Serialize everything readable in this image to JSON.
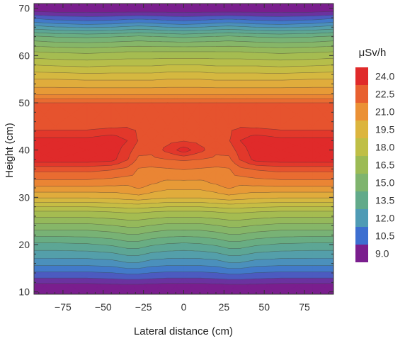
{
  "chart_data": {
    "type": "heatmap",
    "subtype": "filled-contour",
    "xlabel": "Lateral distance (cm)",
    "ylabel": "Height (cm)",
    "xlim": [
      -93,
      93
    ],
    "ylim": [
      9.5,
      71
    ],
    "x_ticks": [
      {
        "value": -75,
        "label": "−75"
      },
      {
        "value": -50,
        "label": "−50"
      },
      {
        "value": -25,
        "label": "−25"
      },
      {
        "value": 0,
        "label": "0"
      },
      {
        "value": 25,
        "label": "25"
      },
      {
        "value": 50,
        "label": "50"
      },
      {
        "value": 75,
        "label": "75"
      }
    ],
    "y_ticks": [
      {
        "value": 10,
        "label": "10"
      },
      {
        "value": 20,
        "label": "20"
      },
      {
        "value": 30,
        "label": "30"
      },
      {
        "value": 40,
        "label": "40"
      },
      {
        "value": 50,
        "label": "50"
      },
      {
        "value": 60,
        "label": "60"
      },
      {
        "value": 70,
        "label": "70"
      }
    ],
    "legend": {
      "title": "μSv/h",
      "placement": "right",
      "levels": [
        {
          "label": "24.0",
          "color": "#e02a2a"
        },
        {
          "label": "22.5",
          "color": "#e8602f"
        },
        {
          "label": "21.0",
          "color": "#eb9135"
        },
        {
          "label": "19.5",
          "color": "#dcb53e"
        },
        {
          "label": "18.0",
          "color": "#bfbf46"
        },
        {
          "label": "16.5",
          "color": "#9cbb55"
        },
        {
          "label": "15.0",
          "color": "#7fb46e"
        },
        {
          "label": "13.5",
          "color": "#62aa8a"
        },
        {
          "label": "12.0",
          "color": "#4f9bb5"
        },
        {
          "label": "10.5",
          "color": "#3d6fd0"
        },
        {
          "label": "9.0",
          "color": "#7a1e8e"
        }
      ]
    },
    "x": [
      -93,
      -80,
      -60,
      -45,
      -35,
      -28,
      -20,
      -10,
      0,
      10,
      20,
      28,
      35,
      45,
      60,
      80,
      93
    ],
    "y": [
      9.5,
      13,
      16,
      20,
      24,
      27,
      30,
      33,
      36,
      38,
      40,
      42,
      45,
      50,
      52,
      55,
      58,
      61,
      64,
      67,
      69.5,
      71
    ],
    "z": [
      [
        7.5,
        7.5,
        7.5,
        7.6,
        7.5,
        7.5,
        7.5,
        7.5,
        7.5,
        7.5,
        7.5,
        7.5,
        7.5,
        7.6,
        7.5,
        7.5,
        7.5
      ],
      [
        9.8,
        9.8,
        9.8,
        9.9,
        10.0,
        10.0,
        9.9,
        9.8,
        9.8,
        9.8,
        9.9,
        10.0,
        10.0,
        9.9,
        9.8,
        9.8,
        9.8
      ],
      [
        11.5,
        11.5,
        11.5,
        11.6,
        11.9,
        11.9,
        11.6,
        11.5,
        11.5,
        11.5,
        11.6,
        11.9,
        11.9,
        11.6,
        11.5,
        11.5,
        11.5
      ],
      [
        13.3,
        13.3,
        13.4,
        13.6,
        13.9,
        13.9,
        13.6,
        13.4,
        13.3,
        13.4,
        13.6,
        13.9,
        13.9,
        13.6,
        13.4,
        13.3,
        13.3
      ],
      [
        15.5,
        15.5,
        15.5,
        15.7,
        15.9,
        15.9,
        15.7,
        15.5,
        15.5,
        15.5,
        15.7,
        15.9,
        15.9,
        15.7,
        15.5,
        15.5,
        15.5
      ],
      [
        17.2,
        17.2,
        17.2,
        17.3,
        17.4,
        17.4,
        17.3,
        17.2,
        17.2,
        17.2,
        17.3,
        17.4,
        17.4,
        17.3,
        17.2,
        17.2,
        17.2
      ],
      [
        19.6,
        19.6,
        19.6,
        19.7,
        19.9,
        20.0,
        19.8,
        19.6,
        19.6,
        19.6,
        19.8,
        20.0,
        19.9,
        19.7,
        19.6,
        19.6,
        19.6
      ],
      [
        21.4,
        21.4,
        21.4,
        21.3,
        21.2,
        21.6,
        21.1,
        20.8,
        20.8,
        20.8,
        21.1,
        21.6,
        21.2,
        21.3,
        21.4,
        21.4,
        21.4
      ],
      [
        22.8,
        22.8,
        22.8,
        22.6,
        22.3,
        21.7,
        21.6,
        21.7,
        21.8,
        21.7,
        21.6,
        21.7,
        22.3,
        22.6,
        22.8,
        22.8,
        22.8
      ],
      [
        24.5,
        24.5,
        24.5,
        24.3,
        23.3,
        22.3,
        22.3,
        22.5,
        22.6,
        22.5,
        22.3,
        22.3,
        23.3,
        24.3,
        24.5,
        24.5,
        24.5
      ],
      [
        24.6,
        24.6,
        24.6,
        24.5,
        23.6,
        22.8,
        22.7,
        23.5,
        24.4,
        23.5,
        22.7,
        22.8,
        23.6,
        24.5,
        24.6,
        24.6,
        24.6
      ],
      [
        24.3,
        24.3,
        24.3,
        24.6,
        24.0,
        23.2,
        22.9,
        23.0,
        23.2,
        23.0,
        22.9,
        23.2,
        24.0,
        24.6,
        24.3,
        24.3,
        24.3
      ],
      [
        22.9,
        22.9,
        22.9,
        23.1,
        23.2,
        23.1,
        23.0,
        23.0,
        23.0,
        23.0,
        23.0,
        23.1,
        23.2,
        23.1,
        22.9,
        22.9,
        22.9
      ],
      [
        22.5,
        22.5,
        22.5,
        22.5,
        22.5,
        22.5,
        22.5,
        22.5,
        22.5,
        22.5,
        22.5,
        22.5,
        22.5,
        22.5,
        22.5,
        22.5,
        22.5
      ],
      [
        20.8,
        20.8,
        20.8,
        20.8,
        20.8,
        20.8,
        20.8,
        20.8,
        20.8,
        20.8,
        20.8,
        20.8,
        20.8,
        20.8,
        20.8,
        20.8,
        20.8
      ],
      [
        19.5,
        19.5,
        19.4,
        19.4,
        19.4,
        19.4,
        19.4,
        19.5,
        19.5,
        19.5,
        19.4,
        19.4,
        19.4,
        19.4,
        19.4,
        19.5,
        19.5
      ],
      [
        18.0,
        17.9,
        17.8,
        17.9,
        17.9,
        17.9,
        17.9,
        18.0,
        18.0,
        18.0,
        17.9,
        17.9,
        17.9,
        17.9,
        17.8,
        17.9,
        18.0
      ],
      [
        16.4,
        16.3,
        16.2,
        16.3,
        16.4,
        16.4,
        16.4,
        16.4,
        16.4,
        16.4,
        16.4,
        16.4,
        16.4,
        16.3,
        16.2,
        16.3,
        16.4
      ],
      [
        14.4,
        14.2,
        14.1,
        14.2,
        14.3,
        14.4,
        14.3,
        14.2,
        14.1,
        14.2,
        14.3,
        14.4,
        14.3,
        14.2,
        14.1,
        14.2,
        14.4
      ],
      [
        11.3,
        11.0,
        10.8,
        10.9,
        11.1,
        11.2,
        11.1,
        10.9,
        10.8,
        10.9,
        11.1,
        11.2,
        11.1,
        10.9,
        10.8,
        11.0,
        11.3
      ],
      [
        8.8,
        8.7,
        8.7,
        8.7,
        8.7,
        8.7,
        8.7,
        8.7,
        8.7,
        8.7,
        8.7,
        8.7,
        8.7,
        8.7,
        8.7,
        8.7,
        8.8
      ],
      [
        7.0,
        7.0,
        7.0,
        7.0,
        7.0,
        7.0,
        7.0,
        7.0,
        7.0,
        7.0,
        7.0,
        7.0,
        7.0,
        7.0,
        7.0,
        7.0,
        7.0
      ]
    ],
    "contour_start": 9.0,
    "contour_step": 0.75,
    "grid": false
  }
}
